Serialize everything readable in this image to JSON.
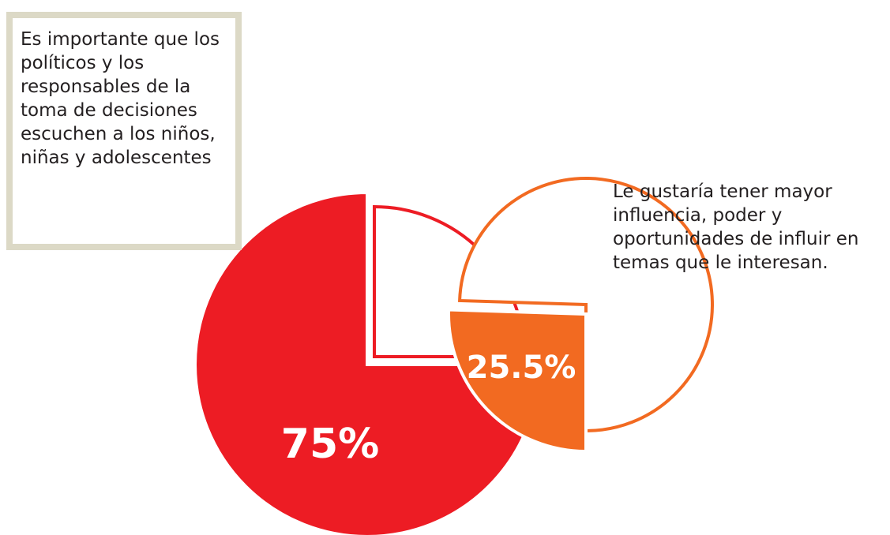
{
  "chart_data": [
    {
      "type": "pie",
      "annotation": "Es importante que los políticos y los responsables de la toma de decisiones escuchen a los niños, niñas y adolescentes",
      "values": [
        75
      ],
      "value_labels": [
        "75%"
      ],
      "color": "#ed1c24"
    },
    {
      "type": "pie",
      "annotation": "Le gustaría tener mayor influencia, poder y oportunidades de influir en temas que le interesan.",
      "values": [
        25.5
      ],
      "value_labels": [
        "25.5%"
      ],
      "color": "#f26a21"
    }
  ]
}
